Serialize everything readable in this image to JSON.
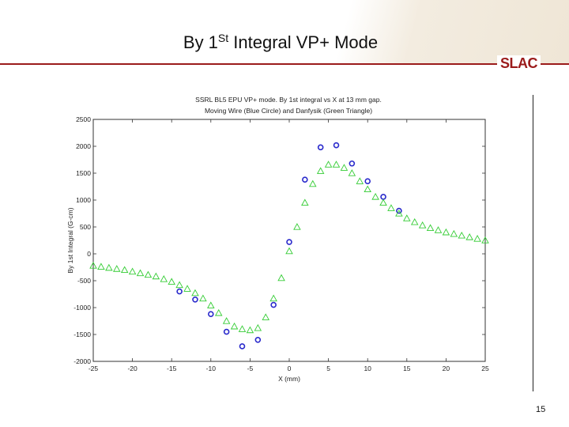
{
  "slide": {
    "title_main": "By 1",
    "title_sup": "St",
    "title_rest": " Integral VP+ Mode",
    "logo": "SLAC",
    "page_number": "15"
  },
  "chart_data": {
    "type": "scatter",
    "title": "SSRL BL5 EPU VP+ mode.  By 1st integral vs X at 13 mm gap.",
    "subtitle": "Moving Wire (Blue Circle) and Danfysik (Green Triangle)",
    "xlabel": "X (mm)",
    "ylabel": "By 1st Integral (G-cm)",
    "xlim": [
      -25,
      25
    ],
    "ylim": [
      -2000,
      2500
    ],
    "xticks": [
      -25,
      -20,
      -15,
      -10,
      -5,
      0,
      5,
      10,
      15,
      20,
      25
    ],
    "yticks": [
      -2000,
      -1500,
      -1000,
      -500,
      0,
      500,
      1000,
      1500,
      2000,
      2500
    ],
    "grid": false,
    "series": [
      {
        "color": "#2a2acc",
        "marker": "circle",
        "x": [
          -14,
          -12,
          -10,
          -8,
          -6,
          -4,
          -2,
          0,
          2,
          4,
          6,
          8,
          10,
          12,
          14
        ],
        "y": [
          -700,
          -850,
          -1120,
          -1450,
          -1720,
          -1600,
          -950,
          220,
          1380,
          1980,
          2020,
          1680,
          1350,
          1060,
          800
        ]
      },
      {
        "color": "#33cc33",
        "marker": "triangle",
        "x": [
          -25,
          -24,
          -23,
          -22,
          -21,
          -20,
          -19,
          -18,
          -17,
          -16,
          -15,
          -14,
          -13,
          -12,
          -11,
          -10,
          -9,
          -8,
          -7,
          -6,
          -5,
          -4,
          -3,
          -2,
          -1,
          0,
          1,
          2,
          3,
          4,
          5,
          6,
          7,
          8,
          9,
          10,
          11,
          12,
          13,
          14,
          15,
          16,
          17,
          18,
          19,
          20,
          21,
          22,
          23,
          24,
          25
        ],
        "y": [
          -220,
          -240,
          -260,
          -280,
          -300,
          -330,
          -360,
          -390,
          -420,
          -470,
          -520,
          -580,
          -650,
          -730,
          -830,
          -960,
          -1100,
          -1250,
          -1350,
          -1400,
          -1420,
          -1380,
          -1180,
          -830,
          -450,
          50,
          500,
          950,
          1300,
          1540,
          1660,
          1660,
          1600,
          1500,
          1350,
          1200,
          1060,
          950,
          850,
          750,
          660,
          590,
          530,
          480,
          440,
          400,
          370,
          340,
          310,
          280,
          250
        ]
      }
    ]
  }
}
